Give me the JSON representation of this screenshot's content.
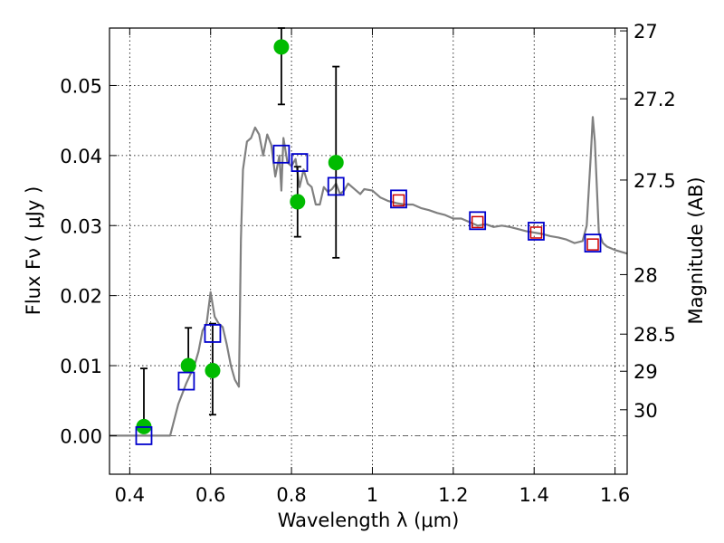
{
  "chart_data": {
    "type": "scatter",
    "xlabel": "Wavelength  λ (μm)",
    "ylabel": "Flux  Fν  ( μJy )",
    "ylabel_right": "Magnitude (AB)",
    "xlim": [
      0.35,
      1.63
    ],
    "ylim": [
      -0.0055,
      0.0582
    ],
    "x_ticks": [
      0.4,
      0.6,
      0.8,
      1.0,
      1.2,
      1.4,
      1.6
    ],
    "x_tick_labels": [
      "0.4",
      "0.6",
      "0.8",
      "1",
      "1.2",
      "1.4",
      "1.6"
    ],
    "y_ticks": [
      0.0,
      0.01,
      0.02,
      0.03,
      0.04,
      0.05
    ],
    "y_tick_labels": [
      "0.00",
      "0.01",
      "0.02",
      "0.03",
      "0.04",
      "0.05"
    ],
    "right_ticks": [
      {
        "label": "27",
        "flux": 0.0578
      },
      {
        "label": "27.2",
        "flux": 0.0481
      },
      {
        "label": "27.5",
        "flux": 0.0365
      },
      {
        "label": "28",
        "flux": 0.023
      },
      {
        "label": "28.5",
        "flux": 0.0145
      },
      {
        "label": "29",
        "flux": 0.0092
      },
      {
        "label": "30",
        "flux": 0.0037
      }
    ],
    "grid": true,
    "zero_line": true,
    "series": [
      {
        "kind": "line",
        "color": "#808080",
        "x": [
          0.35,
          0.46,
          0.48,
          0.5,
          0.52,
          0.54,
          0.56,
          0.57,
          0.58,
          0.59,
          0.6,
          0.61,
          0.62,
          0.63,
          0.64,
          0.65,
          0.66,
          0.67,
          0.675,
          0.68,
          0.69,
          0.7,
          0.71,
          0.72,
          0.73,
          0.74,
          0.75,
          0.76,
          0.77,
          0.775,
          0.78,
          0.79,
          0.8,
          0.81,
          0.82,
          0.83,
          0.84,
          0.85,
          0.86,
          0.87,
          0.88,
          0.89,
          0.9,
          0.91,
          0.92,
          0.93,
          0.94,
          0.95,
          0.96,
          0.97,
          0.98,
          1.0,
          1.02,
          1.04,
          1.06,
          1.08,
          1.1,
          1.12,
          1.14,
          1.16,
          1.18,
          1.2,
          1.22,
          1.24,
          1.26,
          1.28,
          1.3,
          1.32,
          1.34,
          1.36,
          1.38,
          1.4,
          1.42,
          1.44,
          1.46,
          1.48,
          1.5,
          1.52,
          1.53,
          1.54,
          1.545,
          1.55,
          1.56,
          1.57,
          1.58,
          1.6,
          1.63
        ],
        "y": [
          0.0,
          0.0,
          0.0,
          0.0,
          0.0045,
          0.0075,
          0.01,
          0.012,
          0.015,
          0.016,
          0.0205,
          0.017,
          0.016,
          0.0155,
          0.013,
          0.01,
          0.008,
          0.007,
          0.028,
          0.038,
          0.042,
          0.0425,
          0.044,
          0.043,
          0.04,
          0.043,
          0.0415,
          0.037,
          0.04,
          0.035,
          0.0425,
          0.039,
          0.0385,
          0.0395,
          0.0355,
          0.038,
          0.036,
          0.0355,
          0.033,
          0.033,
          0.0355,
          0.0348,
          0.0352,
          0.036,
          0.0345,
          0.035,
          0.036,
          0.0355,
          0.035,
          0.0345,
          0.0352,
          0.035,
          0.034,
          0.0335,
          0.0332,
          0.033,
          0.033,
          0.0325,
          0.0322,
          0.0318,
          0.0315,
          0.031,
          0.031,
          0.0305,
          0.03,
          0.0302,
          0.0298,
          0.03,
          0.0298,
          0.0295,
          0.0292,
          0.029,
          0.0288,
          0.0285,
          0.0283,
          0.028,
          0.0275,
          0.0278,
          0.03,
          0.04,
          0.0455,
          0.042,
          0.029,
          0.0275,
          0.027,
          0.0265,
          0.026
        ]
      },
      {
        "kind": "points",
        "color": "#00bb00",
        "marker": "circle",
        "x": [
          0.435,
          0.545,
          0.605,
          0.775,
          0.815,
          0.91
        ],
        "y": [
          0.0013,
          0.01,
          0.0093,
          0.0555,
          0.0334,
          0.039
        ],
        "yerr_low": [
          0.0013,
          0.01,
          0.003,
          0.0473,
          0.0284,
          0.0254
        ],
        "yerr_high": [
          0.0096,
          0.0154,
          0.016,
          0.0582,
          0.0384,
          0.0527
        ]
      },
      {
        "kind": "points",
        "color": "#0000cc",
        "marker": "open-square",
        "x": [
          0.435,
          0.54,
          0.605,
          0.775,
          0.82,
          0.91,
          1.065,
          1.26,
          1.405,
          1.545
        ],
        "y": [
          0.0,
          0.0078,
          0.0146,
          0.0402,
          0.039,
          0.0356,
          0.0338,
          0.0307,
          0.0292,
          0.0275
        ]
      },
      {
        "kind": "points",
        "color": "#cc0000",
        "marker": "open-square-small",
        "x": [
          1.065,
          1.26,
          1.405,
          1.545
        ],
        "y": [
          0.0336,
          0.0305,
          0.029,
          0.0273
        ]
      }
    ]
  }
}
